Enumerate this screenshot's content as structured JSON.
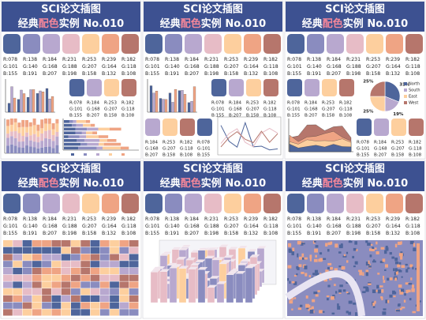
{
  "header": {
    "title": "SCI论文插图",
    "subtitle_pre": "经典",
    "subtitle_hl": "配色",
    "subtitle_post": "实例 No.010"
  },
  "palette": [
    {
      "color": "#4E659B",
      "r": "R:078",
      "g": "G:101",
      "b": "B:155"
    },
    {
      "color": "#8A8CBF",
      "r": "R:138",
      "g": "G:140",
      "b": "B:191"
    },
    {
      "color": "#B8A8CF",
      "r": "R:184",
      "g": "G:168",
      "b": "B:207"
    },
    {
      "color": "#E7BCC6",
      "r": "R:231",
      "g": "G:188",
      "b": "B:198"
    },
    {
      "color": "#FDCF9E",
      "r": "R:253",
      "g": "G:207",
      "b": "B:158"
    },
    {
      "color": "#EFA484",
      "r": "R:239",
      "g": "G:164",
      "b": "B:132"
    },
    {
      "color": "#B6766C",
      "r": "R:182",
      "g": "G:118",
      "b": "B:108"
    }
  ],
  "chart_data": {
    "type": "pie",
    "categories": [
      "North",
      "South",
      "East",
      "West"
    ],
    "values": [
      31,
      19,
      25,
      25
    ],
    "value_labels": [
      "31%",
      "19%",
      "25%",
      "25%"
    ],
    "colors": [
      "#4E659B",
      "#B8A8CF",
      "#FDCF9E",
      "#B6766C"
    ]
  }
}
